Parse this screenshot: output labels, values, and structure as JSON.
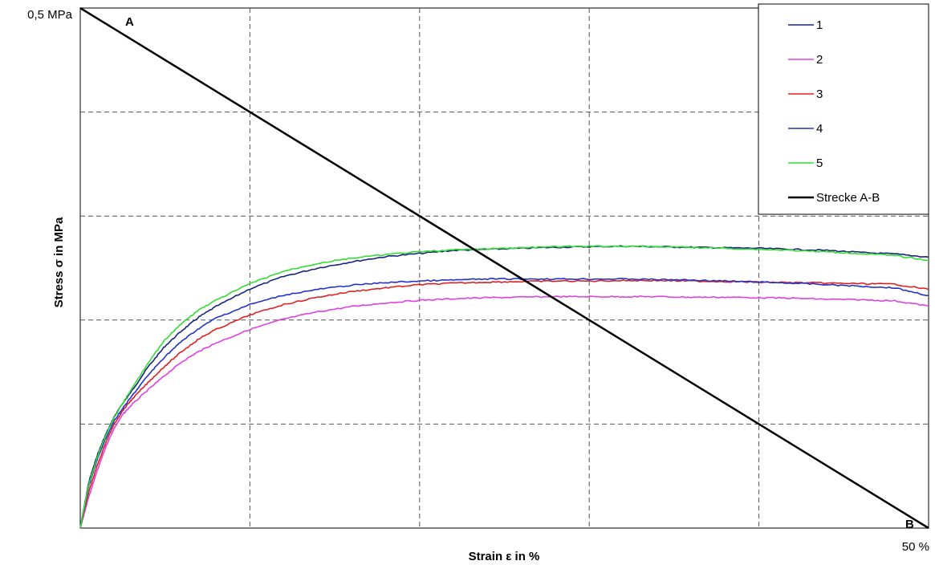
{
  "chart_data": {
    "type": "line",
    "xlabel": "Strain ε in %",
    "ylabel": "Stress σ in MPa",
    "x_tick_label_max": "50 %",
    "y_tick_label_max": "0,5 MPa",
    "xlim": [
      0,
      50
    ],
    "ylim": [
      0,
      0.5
    ],
    "x_gridlines": [
      10,
      20,
      30,
      40
    ],
    "y_gridlines": [
      0.1,
      0.2,
      0.3,
      0.4
    ],
    "grid": true,
    "legend_placement": "top-right",
    "x": [
      0,
      0.5,
      1,
      1.5,
      2,
      2.5,
      3,
      4,
      5,
      6,
      7,
      8,
      10,
      12,
      14,
      16,
      18,
      20,
      22,
      24,
      26,
      28,
      30,
      32,
      34,
      36,
      38,
      40,
      42,
      44,
      46,
      48,
      50
    ],
    "series": [
      {
        "name": "1",
        "color": "#1a237e",
        "values": [
          0,
          0.044,
          0.07,
          0.09,
          0.107,
          0.12,
          0.131,
          0.155,
          0.175,
          0.19,
          0.203,
          0.213,
          0.23,
          0.242,
          0.25,
          0.256,
          0.261,
          0.264,
          0.267,
          0.268,
          0.269,
          0.27,
          0.2705,
          0.271,
          0.2705,
          0.27,
          0.2695,
          0.269,
          0.268,
          0.267,
          0.265,
          0.2635,
          0.2605
        ]
      },
      {
        "name": "2",
        "color": "#e040e0",
        "values": [
          0,
          0.03,
          0.055,
          0.078,
          0.096,
          0.109,
          0.118,
          0.133,
          0.147,
          0.16,
          0.17,
          0.178,
          0.191,
          0.201,
          0.208,
          0.213,
          0.2165,
          0.219,
          0.2205,
          0.2215,
          0.222,
          0.2225,
          0.2225,
          0.2225,
          0.2225,
          0.222,
          0.222,
          0.2215,
          0.221,
          0.22,
          0.2195,
          0.2185,
          0.2135
        ]
      },
      {
        "name": "3",
        "color": "#e02020",
        "values": [
          0,
          0.035,
          0.06,
          0.082,
          0.1,
          0.113,
          0.123,
          0.14,
          0.156,
          0.17,
          0.182,
          0.191,
          0.205,
          0.215,
          0.222,
          0.2275,
          0.231,
          0.234,
          0.2355,
          0.2365,
          0.237,
          0.2375,
          0.2375,
          0.238,
          0.238,
          0.2375,
          0.237,
          0.2365,
          0.236,
          0.2355,
          0.235,
          0.2345,
          0.2295
        ]
      },
      {
        "name": "4",
        "color": "#2233cc",
        "values": [
          0,
          0.04,
          0.066,
          0.086,
          0.103,
          0.115,
          0.126,
          0.147,
          0.165,
          0.18,
          0.192,
          0.202,
          0.215,
          0.224,
          0.2295,
          0.2335,
          0.236,
          0.2375,
          0.2385,
          0.2395,
          0.2395,
          0.2395,
          0.2395,
          0.2395,
          0.239,
          0.2385,
          0.2375,
          0.2365,
          0.2355,
          0.234,
          0.2325,
          0.231,
          0.2235
        ]
      },
      {
        "name": "5",
        "color": "#33dd33",
        "values": [
          0,
          0.042,
          0.068,
          0.089,
          0.106,
          0.12,
          0.133,
          0.159,
          0.181,
          0.197,
          0.21,
          0.219,
          0.235,
          0.247,
          0.2545,
          0.2595,
          0.263,
          0.2655,
          0.2675,
          0.2685,
          0.2695,
          0.2705,
          0.271,
          0.271,
          0.2705,
          0.27,
          0.269,
          0.268,
          0.267,
          0.2655,
          0.264,
          0.262,
          0.2575
        ]
      }
    ],
    "reference_line": {
      "name": "Strecke A-B",
      "color": "#000000",
      "points": [
        [
          0,
          0.5
        ],
        [
          50,
          0
        ]
      ],
      "start_label": "A",
      "end_label": "B"
    }
  }
}
